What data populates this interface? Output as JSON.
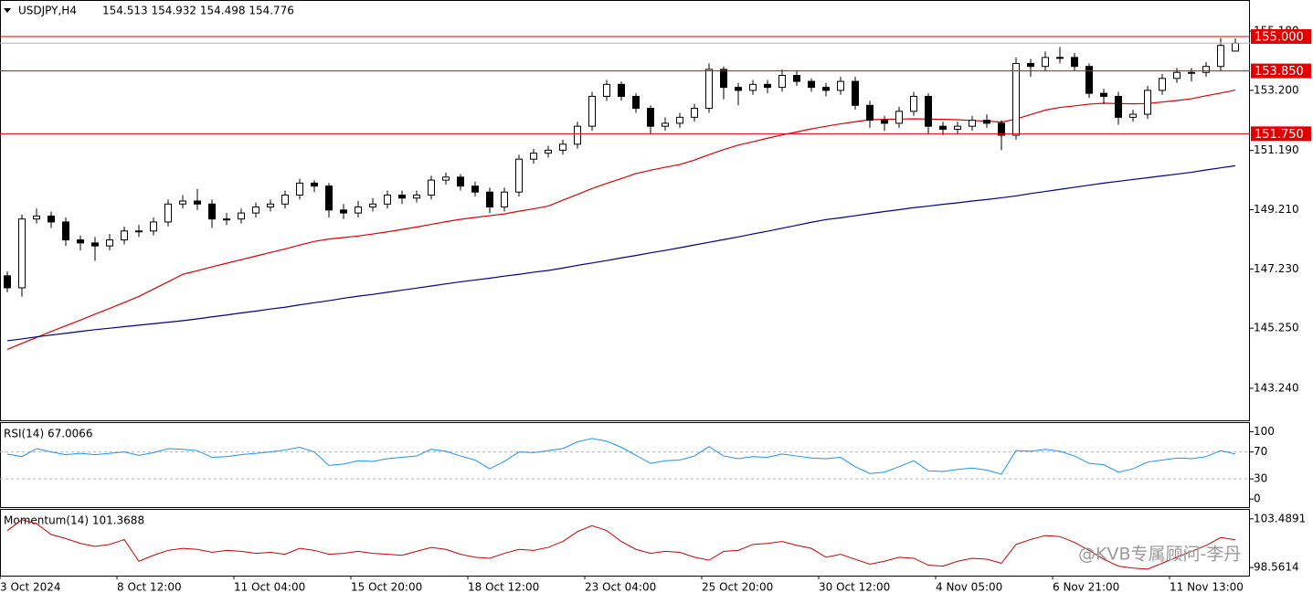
{
  "chart_data": [
    {
      "type": "candlestick",
      "symbol": "USDJPY,H4",
      "ohlc_header": "154.513 154.932 154.498 154.776",
      "watermark": "@KVB专属顾问-李丹",
      "categories": [
        "3 Oct 2024",
        null,
        null,
        null,
        null,
        null,
        null,
        null,
        "8 Oct 12:00",
        null,
        null,
        null,
        null,
        null,
        null,
        null,
        "11 Oct 04:00",
        null,
        null,
        null,
        null,
        null,
        null,
        null,
        "15 Oct 20:00",
        null,
        null,
        null,
        null,
        null,
        null,
        null,
        "18 Oct 12:00",
        null,
        null,
        null,
        null,
        null,
        null,
        null,
        "23 Oct 04:00",
        null,
        null,
        null,
        null,
        null,
        null,
        null,
        "25 Oct 20:00",
        null,
        null,
        null,
        null,
        null,
        null,
        null,
        "30 Oct 12:00",
        null,
        null,
        null,
        null,
        null,
        null,
        null,
        "4 Nov 05:00",
        null,
        null,
        null,
        null,
        null,
        null,
        null,
        "6 Nov 21:00",
        null,
        null,
        null,
        null,
        null,
        null,
        null,
        "11 Nov 13:00",
        null,
        null,
        null,
        null
      ],
      "up_color": "#ffffff",
      "down_color": "#000000",
      "outline_color": "#000000",
      "candles": [
        [
          147.0,
          147.15,
          146.45,
          146.6
        ],
        [
          146.6,
          149.05,
          146.3,
          148.9
        ],
        [
          148.9,
          149.25,
          148.75,
          149.0
        ],
        [
          149.0,
          149.15,
          148.6,
          148.8
        ],
        [
          148.8,
          148.95,
          148.0,
          148.2
        ],
        [
          148.2,
          148.35,
          147.85,
          148.1
        ],
        [
          148.1,
          148.3,
          147.5,
          148.0
        ],
        [
          148.0,
          148.4,
          147.85,
          148.2
        ],
        [
          148.2,
          148.65,
          148.05,
          148.5
        ],
        [
          148.5,
          148.7,
          148.3,
          148.5
        ],
        [
          148.5,
          148.95,
          148.35,
          148.8
        ],
        [
          148.8,
          149.55,
          148.65,
          149.4
        ],
        [
          149.4,
          149.7,
          149.25,
          149.5
        ],
        [
          149.5,
          149.9,
          149.2,
          149.4
        ],
        [
          149.4,
          149.55,
          148.6,
          148.9
        ],
        [
          148.9,
          149.1,
          148.7,
          148.9
        ],
        [
          148.9,
          149.25,
          148.75,
          149.1
        ],
        [
          149.1,
          149.45,
          148.95,
          149.3
        ],
        [
          149.3,
          149.55,
          149.15,
          149.4
        ],
        [
          149.4,
          149.85,
          149.25,
          149.7
        ],
        [
          149.7,
          150.25,
          149.55,
          150.1
        ],
        [
          150.1,
          150.2,
          149.8,
          150.0
        ],
        [
          150.0,
          150.1,
          148.95,
          149.2
        ],
        [
          149.2,
          149.4,
          148.9,
          149.1
        ],
        [
          149.1,
          149.5,
          148.95,
          149.3
        ],
        [
          149.3,
          149.6,
          149.15,
          149.4
        ],
        [
          149.4,
          149.85,
          149.25,
          149.7
        ],
        [
          149.7,
          149.85,
          149.4,
          149.6
        ],
        [
          149.6,
          149.85,
          149.45,
          149.7
        ],
        [
          149.7,
          150.35,
          149.55,
          150.2
        ],
        [
          150.2,
          150.45,
          150.05,
          150.3
        ],
        [
          150.3,
          150.4,
          149.85,
          150.0
        ],
        [
          150.0,
          150.15,
          149.65,
          149.8
        ],
        [
          149.8,
          149.95,
          149.1,
          149.3
        ],
        [
          149.3,
          149.95,
          149.15,
          149.8
        ],
        [
          149.8,
          151.05,
          149.65,
          150.9
        ],
        [
          150.9,
          151.25,
          150.75,
          151.1
        ],
        [
          151.1,
          151.35,
          150.95,
          151.2
        ],
        [
          151.2,
          151.55,
          151.05,
          151.4
        ],
        [
          151.4,
          152.15,
          151.25,
          152.0
        ],
        [
          152.0,
          153.15,
          151.85,
          153.0
        ],
        [
          153.0,
          153.55,
          152.85,
          153.4
        ],
        [
          153.4,
          153.5,
          152.85,
          153.0
        ],
        [
          153.0,
          153.1,
          152.45,
          152.6
        ],
        [
          152.6,
          152.7,
          151.75,
          152.0
        ],
        [
          152.0,
          152.3,
          151.85,
          152.1
        ],
        [
          152.1,
          152.45,
          151.95,
          152.3
        ],
        [
          152.3,
          152.75,
          152.15,
          152.6
        ],
        [
          152.6,
          154.1,
          152.45,
          153.9
        ],
        [
          153.9,
          154.0,
          152.9,
          153.3
        ],
        [
          153.3,
          153.45,
          152.7,
          153.2
        ],
        [
          153.2,
          153.55,
          153.05,
          153.4
        ],
        [
          153.4,
          153.55,
          153.1,
          153.3
        ],
        [
          153.3,
          153.9,
          153.15,
          153.7
        ],
        [
          153.7,
          153.85,
          153.35,
          153.5
        ],
        [
          153.5,
          153.6,
          153.15,
          153.3
        ],
        [
          153.3,
          153.45,
          153.0,
          153.2
        ],
        [
          153.2,
          153.65,
          153.05,
          153.5
        ],
        [
          153.5,
          153.65,
          152.55,
          152.7
        ],
        [
          152.7,
          152.85,
          151.95,
          152.2
        ],
        [
          152.2,
          152.35,
          151.85,
          152.1
        ],
        [
          152.1,
          152.65,
          151.95,
          152.5
        ],
        [
          152.5,
          153.15,
          152.35,
          153.0
        ],
        [
          153.0,
          153.1,
          151.75,
          152.0
        ],
        [
          152.0,
          152.15,
          151.7,
          151.9
        ],
        [
          151.9,
          152.15,
          151.75,
          152.0
        ],
        [
          152.0,
          152.35,
          151.85,
          152.2
        ],
        [
          152.2,
          152.4,
          151.95,
          152.1
        ],
        [
          152.1,
          152.2,
          151.2,
          151.7
        ],
        [
          151.7,
          154.3,
          151.55,
          154.1
        ],
        [
          154.1,
          154.25,
          153.65,
          154.0
        ],
        [
          154.0,
          154.5,
          153.85,
          154.3
        ],
        [
          154.3,
          154.65,
          154.1,
          154.3
        ],
        [
          154.3,
          154.45,
          153.85,
          154.0
        ],
        [
          154.0,
          154.1,
          152.95,
          153.1
        ],
        [
          153.1,
          153.25,
          152.75,
          153.0
        ],
        [
          153.0,
          153.15,
          152.05,
          152.3
        ],
        [
          152.3,
          152.55,
          152.15,
          152.4
        ],
        [
          152.4,
          153.35,
          152.25,
          153.2
        ],
        [
          153.2,
          153.75,
          153.05,
          153.6
        ],
        [
          153.6,
          153.95,
          153.45,
          153.8
        ],
        [
          153.8,
          153.95,
          153.5,
          153.8
        ],
        [
          153.8,
          154.15,
          153.65,
          154.0
        ],
        [
          154.0,
          154.95,
          153.85,
          154.7
        ],
        [
          154.513,
          154.932,
          154.498,
          154.776
        ]
      ],
      "series": [
        {
          "color": "#e00000",
          "values": [
            144.54,
            144.74,
            144.94,
            145.14,
            145.33,
            145.52,
            145.72,
            145.91,
            146.11,
            146.31,
            146.56,
            146.8,
            147.05,
            147.17,
            147.3,
            147.42,
            147.54,
            147.66,
            147.78,
            147.9,
            148.03,
            148.15,
            148.23,
            148.28,
            148.33,
            148.4,
            148.47,
            148.55,
            148.63,
            148.72,
            148.81,
            148.89,
            148.95,
            149.01,
            149.07,
            149.16,
            149.24,
            149.33,
            149.53,
            149.72,
            149.92,
            150.09,
            150.25,
            150.42,
            150.53,
            150.63,
            150.72,
            150.87,
            151.05,
            151.22,
            151.37,
            151.48,
            151.6,
            151.71,
            151.81,
            151.91,
            152.0,
            152.08,
            152.15,
            152.22,
            152.23,
            152.24,
            152.25,
            152.24,
            152.23,
            152.22,
            152.19,
            152.17,
            152.14,
            152.24,
            152.39,
            152.54,
            152.63,
            152.68,
            152.74,
            152.77,
            152.76,
            152.75,
            152.76,
            152.81,
            152.86,
            152.92,
            153.02,
            153.11,
            153.21
          ]
        },
        {
          "color": "#00008b",
          "values": [
            144.83,
            144.89,
            144.96,
            145.02,
            145.08,
            145.14,
            145.2,
            145.25,
            145.3,
            145.35,
            145.4,
            145.45,
            145.5,
            145.56,
            145.63,
            145.69,
            145.76,
            145.82,
            145.89,
            145.95,
            146.03,
            146.1,
            146.17,
            146.25,
            146.32,
            146.38,
            146.45,
            146.52,
            146.59,
            146.66,
            146.73,
            146.8,
            146.86,
            146.92,
            146.99,
            147.05,
            147.12,
            147.18,
            147.26,
            147.35,
            147.43,
            147.51,
            147.6,
            147.68,
            147.77,
            147.85,
            147.94,
            148.03,
            148.12,
            148.21,
            148.3,
            148.4,
            148.49,
            148.59,
            148.69,
            148.79,
            148.88,
            148.94,
            149.01,
            149.08,
            149.15,
            149.21,
            149.28,
            149.33,
            149.39,
            149.44,
            149.5,
            149.55,
            149.61,
            149.67,
            149.75,
            149.82,
            149.89,
            149.96,
            150.03,
            150.1,
            150.16,
            150.22,
            150.28,
            150.34,
            150.4,
            150.46,
            150.54,
            150.61,
            150.68
          ]
        }
      ],
      "hlines": [
        {
          "value": 155.0,
          "label": "155.000"
        },
        {
          "value": 153.85,
          "label": "153.850"
        },
        {
          "value": 151.75,
          "label": "151.750"
        }
      ],
      "hline_color": "#e00000",
      "ylim": [
        142.17,
        156.19
      ],
      "yticks": [
        {
          "value": 155.18,
          "label": "155.180"
        },
        {
          "value": 153.2,
          "label": "153.200"
        },
        {
          "value": 151.19,
          "label": "151.190"
        },
        {
          "value": 149.21,
          "label": "149.210"
        },
        {
          "value": 147.23,
          "label": "147.230"
        },
        {
          "value": 145.25,
          "label": "145.250"
        },
        {
          "value": 143.24,
          "label": "143.240"
        }
      ]
    },
    {
      "type": "line",
      "title": "RSI(14) 67.0066",
      "color": "#1e90ff",
      "values": [
        67,
        63,
        75,
        70,
        66,
        68,
        66,
        68,
        70,
        65,
        69,
        75,
        74,
        72,
        62,
        63,
        66,
        68,
        70,
        73,
        77,
        70,
        50,
        52,
        57,
        56,
        60,
        62,
        64,
        74,
        71,
        64,
        58,
        45,
        56,
        70,
        69,
        72,
        75,
        85,
        90,
        86,
        77,
        65,
        53,
        57,
        58,
        64,
        78,
        64,
        60,
        63,
        62,
        67,
        64,
        61,
        60,
        62,
        48,
        38,
        40,
        48,
        57,
        42,
        41,
        44,
        46,
        43,
        37,
        72,
        71,
        74,
        71,
        64,
        53,
        51,
        40,
        45,
        55,
        58,
        61,
        60,
        63,
        72,
        67.0066
      ],
      "levels": [
        70,
        30
      ],
      "ylim": [
        -12,
        113
      ],
      "yticks": [
        100,
        70,
        30,
        0
      ]
    },
    {
      "type": "line",
      "title": "Momentum(14) 101.3688",
      "color": "#d00000",
      "values": [
        102.3,
        103.4,
        103.0,
        101.9,
        101.5,
        101.0,
        100.7,
        100.9,
        101.4,
        99.2,
        99.8,
        100.3,
        100.5,
        100.4,
        100.1,
        100.3,
        100.2,
        100.0,
        100.1,
        99.9,
        100.5,
        100.3,
        99.9,
        100.0,
        100.2,
        100.0,
        99.9,
        99.8,
        100.2,
        100.6,
        100.4,
        99.9,
        99.6,
        99.5,
        100.0,
        100.4,
        100.3,
        100.6,
        101.2,
        102.2,
        102.8,
        102.3,
        101.2,
        100.4,
        100.0,
        100.2,
        100.1,
        99.6,
        99.3,
        100.2,
        100.3,
        100.9,
        101.0,
        101.2,
        100.8,
        100.5,
        99.6,
        99.9,
        99.4,
        98.9,
        99.2,
        99.6,
        99.5,
        98.8,
        98.7,
        99.2,
        99.5,
        99.4,
        99.0,
        100.9,
        101.4,
        101.8,
        101.7,
        101.1,
        100.3,
        99.4,
        98.7,
        98.5,
        98.4,
        99.0,
        99.6,
        100.2,
        100.8,
        101.6,
        101.3688
      ],
      "ylim": [
        97.74,
        104.4
      ],
      "yticks": [
        103.4891,
        98.5614
      ]
    }
  ]
}
